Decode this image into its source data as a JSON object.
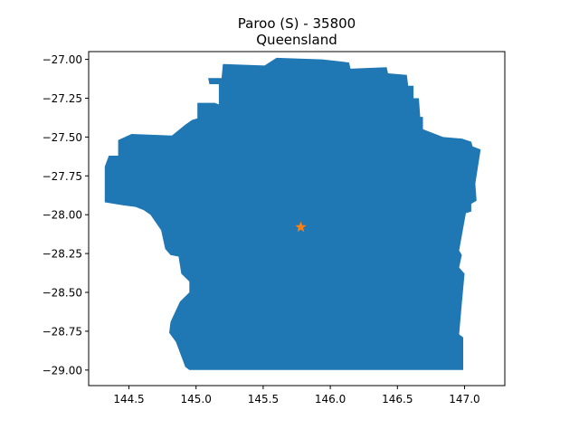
{
  "title": "Paroo (S) - 35800",
  "subtitle": "Queensland",
  "colors": {
    "region_fill": "#1f77b4",
    "marker": "#ff7f0e",
    "axes": "#000000",
    "background": "#ffffff"
  },
  "chart_data": {
    "type": "map",
    "grid": false,
    "legend": "none",
    "xlim": [
      144.2,
      147.3
    ],
    "ylim": [
      -29.1,
      -26.95
    ],
    "x_ticks": [
      {
        "value": 144.5,
        "label": "144.5"
      },
      {
        "value": 145.0,
        "label": "145.0"
      },
      {
        "value": 145.5,
        "label": "145.5"
      },
      {
        "value": 146.0,
        "label": "146.0"
      },
      {
        "value": 146.5,
        "label": "146.5"
      },
      {
        "value": 147.0,
        "label": "147.0"
      }
    ],
    "y_ticks": [
      {
        "value": -27.0,
        "label": "−27.00"
      },
      {
        "value": -27.25,
        "label": "−27.25"
      },
      {
        "value": -27.5,
        "label": "−27.50"
      },
      {
        "value": -27.75,
        "label": "−27.75"
      },
      {
        "value": -28.0,
        "label": "−28.00"
      },
      {
        "value": -28.25,
        "label": "−28.25"
      },
      {
        "value": -28.5,
        "label": "−28.50"
      },
      {
        "value": -28.75,
        "label": "−28.75"
      },
      {
        "value": -29.0,
        "label": "−29.00"
      }
    ],
    "region_outline": [
      [
        145.09,
        -27.12
      ],
      [
        145.19,
        -27.12
      ],
      [
        145.2,
        -27.03
      ],
      [
        145.51,
        -27.04
      ],
      [
        145.6,
        -26.99
      ],
      [
        145.94,
        -27.0
      ],
      [
        146.14,
        -27.02
      ],
      [
        146.15,
        -27.06
      ],
      [
        146.42,
        -27.05
      ],
      [
        146.43,
        -27.09
      ],
      [
        146.57,
        -27.1
      ],
      [
        146.58,
        -27.17
      ],
      [
        146.62,
        -27.17
      ],
      [
        146.62,
        -27.25
      ],
      [
        146.66,
        -27.25
      ],
      [
        146.67,
        -27.37
      ],
      [
        146.69,
        -27.37
      ],
      [
        146.69,
        -27.45
      ],
      [
        146.84,
        -27.5
      ],
      [
        146.98,
        -27.51
      ],
      [
        147.05,
        -27.53
      ],
      [
        147.06,
        -27.56
      ],
      [
        147.12,
        -27.58
      ],
      [
        147.08,
        -27.8
      ],
      [
        147.09,
        -27.91
      ],
      [
        147.05,
        -27.93
      ],
      [
        147.05,
        -27.98
      ],
      [
        147.01,
        -27.99
      ],
      [
        146.96,
        -28.23
      ],
      [
        146.98,
        -28.26
      ],
      [
        146.96,
        -28.34
      ],
      [
        147.0,
        -28.38
      ],
      [
        146.98,
        -28.57
      ],
      [
        146.96,
        -28.77
      ],
      [
        146.99,
        -28.79
      ],
      [
        146.99,
        -29.0
      ],
      [
        144.95,
        -29.0
      ],
      [
        144.92,
        -28.98
      ],
      [
        144.85,
        -28.82
      ],
      [
        144.8,
        -28.76
      ],
      [
        144.81,
        -28.69
      ],
      [
        144.88,
        -28.56
      ],
      [
        144.95,
        -28.5
      ],
      [
        144.95,
        -28.43
      ],
      [
        144.89,
        -28.38
      ],
      [
        144.87,
        -28.27
      ],
      [
        144.81,
        -28.26
      ],
      [
        144.77,
        -28.22
      ],
      [
        144.74,
        -28.1
      ],
      [
        144.66,
        -28.0
      ],
      [
        144.61,
        -27.97
      ],
      [
        144.55,
        -27.95
      ],
      [
        144.46,
        -27.94
      ],
      [
        144.32,
        -27.92
      ],
      [
        144.32,
        -27.81
      ],
      [
        144.32,
        -27.69
      ],
      [
        144.35,
        -27.62
      ],
      [
        144.42,
        -27.62
      ],
      [
        144.42,
        -27.52
      ],
      [
        144.52,
        -27.48
      ],
      [
        144.82,
        -27.49
      ],
      [
        144.92,
        -27.42
      ],
      [
        144.97,
        -27.39
      ],
      [
        145.01,
        -27.38
      ],
      [
        145.01,
        -27.28
      ],
      [
        145.14,
        -27.28
      ],
      [
        145.17,
        -27.29
      ],
      [
        145.17,
        -27.16
      ],
      [
        145.1,
        -27.16
      ]
    ],
    "centroid": {
      "lon": 145.78,
      "lat": -28.08
    }
  }
}
